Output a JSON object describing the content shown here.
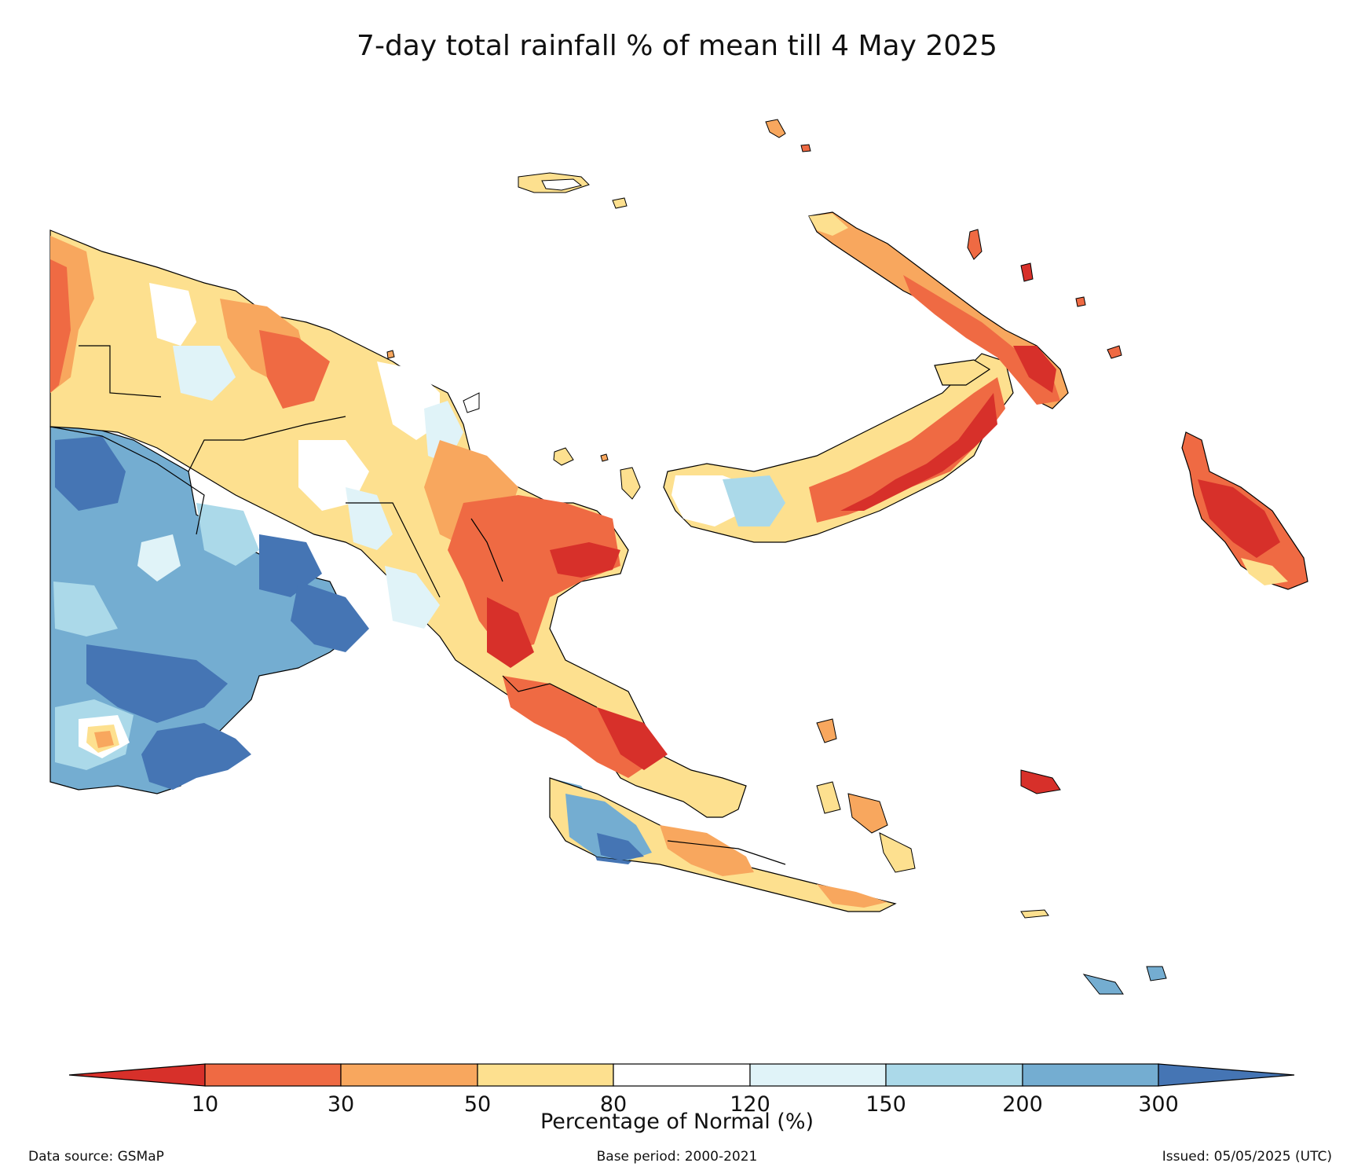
{
  "title": "7-day total rainfall % of mean till 4 May 2025",
  "colorbar": {
    "label": "Percentage of Normal (%)",
    "ticks": [
      "10",
      "30",
      "50",
      "80",
      "120",
      "150",
      "200",
      "300"
    ],
    "colors": {
      "below_10": "#d7302a",
      "10_30": "#ef6a43",
      "30_50": "#f8a75e",
      "50_80": "#fde08f",
      "80_120": "#ffffff",
      "120_150": "#e0f3f8",
      "150_200": "#abd9e9",
      "200_300": "#74add1",
      "above_300": "#4575b4"
    }
  },
  "footer": {
    "data_source": "Data source: GSMaP",
    "base_period": "Base period: 2000-2021",
    "issued": "Issued: 05/05/2025 (UTC)"
  }
}
